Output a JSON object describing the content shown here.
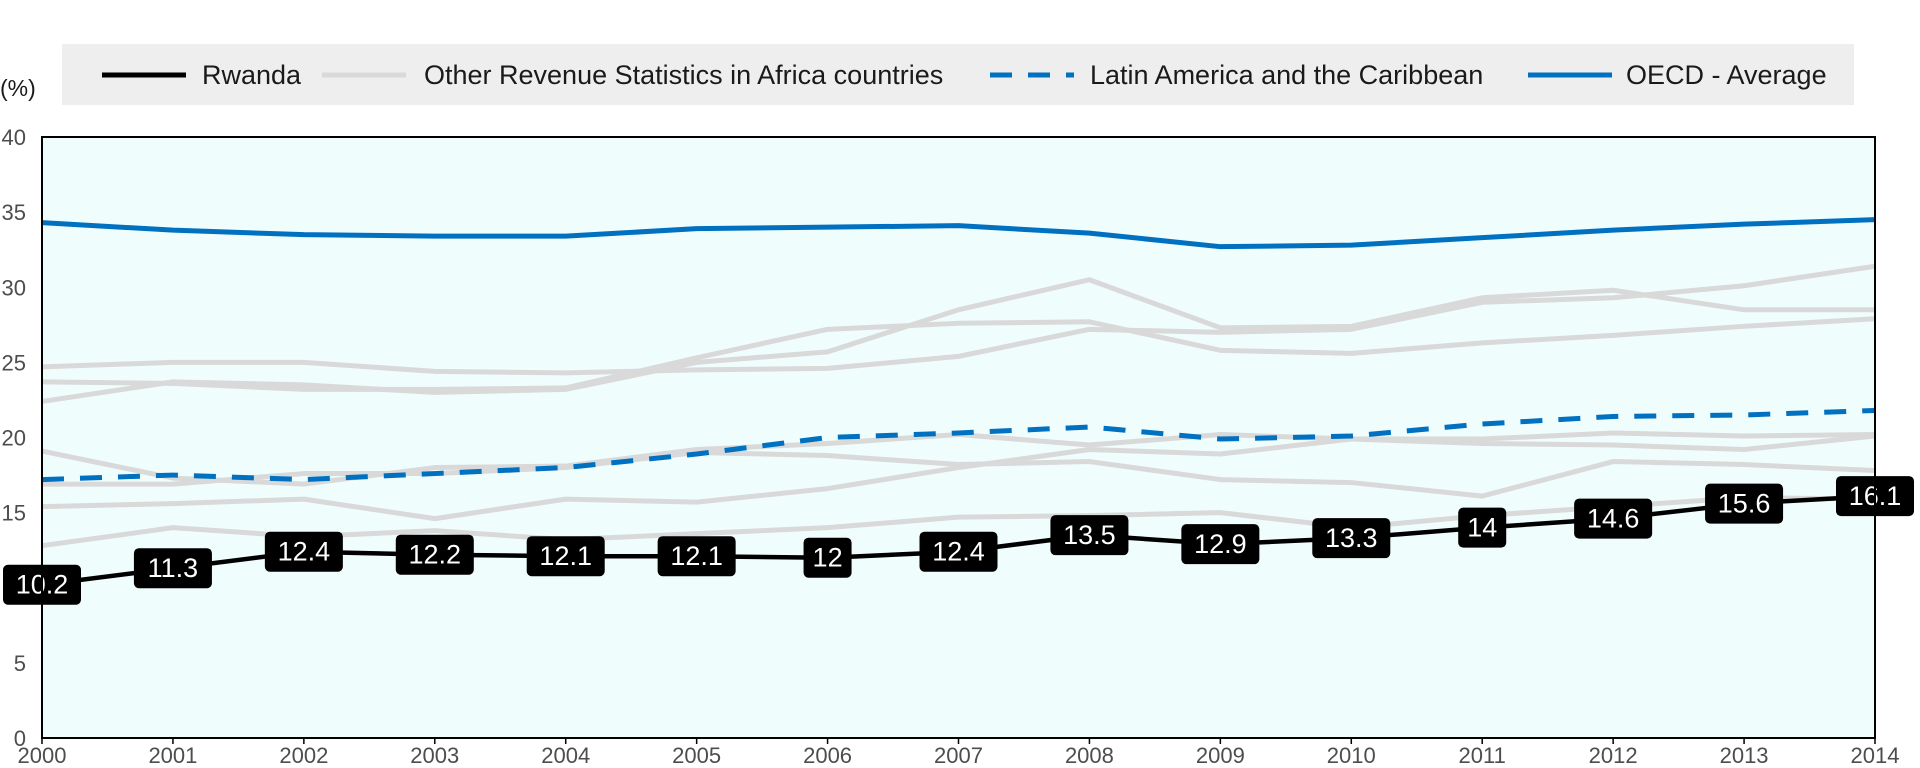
{
  "chart_data": {
    "type": "line",
    "unit_label": "(%)",
    "x": [
      2000,
      2001,
      2002,
      2003,
      2004,
      2005,
      2006,
      2007,
      2008,
      2009,
      2010,
      2011,
      2012,
      2013,
      2014
    ],
    "x_ticks": [
      "2000",
      "2001",
      "2002",
      "2003",
      "2004",
      "2005",
      "2006",
      "2007",
      "2008",
      "2009",
      "2010",
      "2011",
      "2012",
      "2013",
      "2014"
    ],
    "y_ticks": [
      "0",
      "5",
      "10",
      "15",
      "20",
      "25",
      "30",
      "35",
      "40"
    ],
    "ylim": [
      0,
      40
    ],
    "grid": false,
    "legend_placement": "top",
    "plot_background": "#f0fdfd",
    "legend_background": "#eeeeee",
    "legend": [
      {
        "label": "Rwanda",
        "color": "#000000",
        "dash": "solid"
      },
      {
        "label": "Other Revenue Statistics in Africa countries",
        "color": "#d9d9d9",
        "dash": "solid"
      },
      {
        "label": "Latin America and the Caribbean",
        "color": "#0070c0",
        "dash": "dashed"
      },
      {
        "label": "OECD - Average",
        "color": "#0070c0",
        "dash": "solid"
      }
    ],
    "series": [
      {
        "group": "other",
        "values": [
          24.7,
          25.0,
          25.0,
          24.4,
          24.3,
          24.5,
          24.6,
          25.4,
          27.2,
          27.0,
          27.2,
          29.0,
          29.3,
          30.1,
          31.4
        ]
      },
      {
        "group": "other",
        "values": [
          23.7,
          23.6,
          23.2,
          23.2,
          23.3,
          25.3,
          27.2,
          27.6,
          27.7,
          25.8,
          25.6,
          26.3,
          26.8,
          27.4,
          27.9
        ]
      },
      {
        "group": "other",
        "values": [
          22.4,
          23.7,
          23.5,
          23.0,
          23.2,
          25.0,
          25.7,
          28.5,
          30.5,
          27.3,
          27.4,
          29.3,
          29.8,
          28.5,
          28.5
        ]
      },
      {
        "group": "other",
        "values": [
          19.1,
          17.3,
          16.9,
          18.0,
          18.1,
          19.2,
          19.6,
          20.2,
          19.5,
          20.2,
          19.9,
          19.6,
          19.5,
          19.2,
          20.1
        ]
      },
      {
        "group": "other",
        "values": [
          16.9,
          16.9,
          17.6,
          17.6,
          18.0,
          19.0,
          18.8,
          18.2,
          18.4,
          17.2,
          17.0,
          16.1,
          18.4,
          18.2,
          17.8
        ]
      },
      {
        "group": "other",
        "values": [
          15.4,
          15.6,
          15.9,
          14.6,
          15.9,
          15.7,
          16.6,
          18.0,
          19.2,
          18.9,
          19.9,
          19.9,
          20.3,
          20.1,
          20.2
        ]
      },
      {
        "group": "other",
        "values": [
          12.8,
          14.0,
          13.4,
          13.8,
          13.2,
          13.6,
          14.0,
          14.7,
          14.8,
          15.0,
          14.0,
          14.8,
          15.4,
          16.0,
          15.9
        ]
      },
      {
        "group": "lac",
        "name": "Latin America and the Caribbean",
        "values": [
          17.2,
          17.5,
          17.2,
          17.6,
          18.0,
          18.9,
          20.0,
          20.3,
          20.7,
          19.9,
          20.1,
          20.9,
          21.4,
          21.5,
          21.8
        ]
      },
      {
        "group": "oecd",
        "name": "OECD - Average",
        "values": [
          34.3,
          33.8,
          33.5,
          33.4,
          33.4,
          33.9,
          34.0,
          34.1,
          33.6,
          32.7,
          32.8,
          33.3,
          33.8,
          34.2,
          34.5
        ]
      },
      {
        "group": "rwanda",
        "name": "Rwanda",
        "values": [
          10.2,
          11.3,
          12.4,
          12.2,
          12.1,
          12.1,
          12.0,
          12.4,
          13.5,
          12.9,
          13.3,
          14.0,
          14.6,
          15.6,
          16.1
        ]
      }
    ],
    "data_labels": [
      "10.2",
      "11.3",
      "12.4",
      "12.2",
      "12.1",
      "12.1",
      "12",
      "12.4",
      "13.5",
      "12.9",
      "13.3",
      "14",
      "14.6",
      "15.6",
      "16.1"
    ]
  }
}
